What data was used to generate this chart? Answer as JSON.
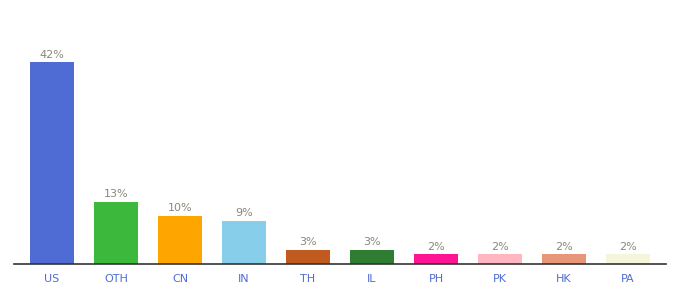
{
  "categories": [
    "US",
    "OTH",
    "CN",
    "IN",
    "TH",
    "IL",
    "PH",
    "PK",
    "HK",
    "PA"
  ],
  "values": [
    42,
    13,
    10,
    9,
    3,
    3,
    2,
    2,
    2,
    2
  ],
  "labels": [
    "42%",
    "13%",
    "10%",
    "9%",
    "3%",
    "3%",
    "2%",
    "2%",
    "2%",
    "2%"
  ],
  "bar_colors": [
    "#4F6CD4",
    "#3CB93C",
    "#FFA500",
    "#87CEEB",
    "#C05A1F",
    "#2E7D32",
    "#FF1493",
    "#FFB6C1",
    "#E8967A",
    "#F5F5DC"
  ],
  "background_color": "#ffffff",
  "ylim": [
    0,
    50
  ],
  "label_color": "#888877",
  "label_fontsize": 8,
  "xtick_color": "#4F6CD4",
  "xtick_fontsize": 8
}
